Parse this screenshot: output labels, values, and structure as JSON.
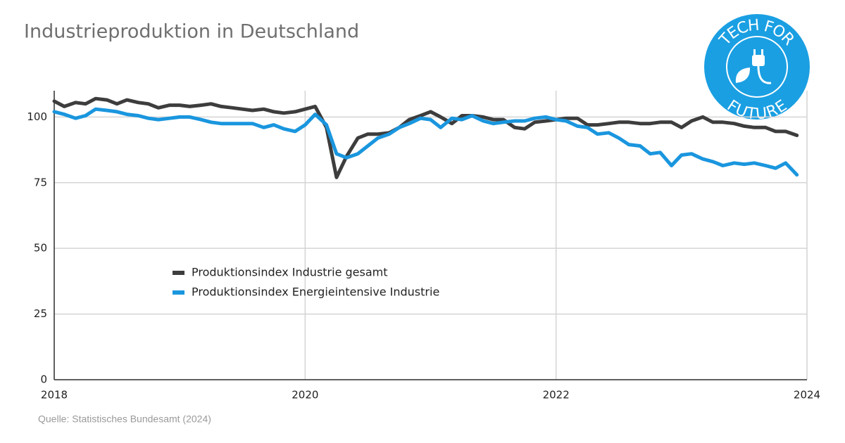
{
  "chart_data": {
    "type": "line",
    "title": "Industrieproduktion in Deutschland",
    "source": "Quelle: Statistisches Bundesamt (2024)",
    "logo": {
      "top": "TECH FOR",
      "bottom": "FUTURE"
    },
    "x": [
      2018,
      2018.08,
      2018.17,
      2018.25,
      2018.33,
      2018.42,
      2018.5,
      2018.58,
      2018.67,
      2018.75,
      2018.83,
      2018.92,
      2019,
      2019.08,
      2019.17,
      2019.25,
      2019.33,
      2019.42,
      2019.5,
      2019.58,
      2019.67,
      2019.75,
      2019.83,
      2019.92,
      2020,
      2020.08,
      2020.17,
      2020.25,
      2020.33,
      2020.42,
      2020.5,
      2020.58,
      2020.67,
      2020.75,
      2020.83,
      2020.92,
      2021,
      2021.08,
      2021.17,
      2021.25,
      2021.33,
      2021.42,
      2021.5,
      2021.58,
      2021.67,
      2021.75,
      2021.83,
      2021.92,
      2022,
      2022.08,
      2022.17,
      2022.25,
      2022.33,
      2022.42,
      2022.5,
      2022.58,
      2022.67,
      2022.75,
      2022.83,
      2022.92,
      2023,
      2023.08,
      2023.17,
      2023.25,
      2023.33,
      2023.42,
      2023.5,
      2023.58,
      2023.67,
      2023.75,
      2023.83,
      2023.92
    ],
    "series": [
      {
        "name": "Produktionsindex Industrie gesamt",
        "color": "#3d3d3d",
        "values": [
          106,
          104,
          105.5,
          105,
          107,
          106.5,
          105,
          106.5,
          105.5,
          105,
          103.5,
          104.5,
          104.5,
          104,
          104.5,
          105,
          104,
          103.5,
          103,
          102.5,
          103,
          102,
          101.5,
          102,
          103,
          104,
          96,
          77,
          85,
          92,
          93.5,
          93.5,
          94,
          96,
          99,
          100.5,
          102,
          100,
          97.5,
          100.5,
          100.5,
          100,
          99,
          99,
          96,
          95.5,
          98,
          98.5,
          99,
          99.5,
          99.5,
          97,
          97,
          97.5,
          98,
          98,
          97.5,
          97.5,
          98,
          98,
          96,
          98.5,
          100,
          98,
          98,
          97.5,
          96.5,
          96,
          96,
          94.5,
          94.5,
          93
        ]
      },
      {
        "name": "Produktionsindex Energieintensive Industrie",
        "color": "#1a96de",
        "values": [
          102,
          101,
          99.5,
          100.5,
          103,
          102.5,
          102,
          101,
          100.5,
          99.5,
          99,
          99.5,
          100,
          100,
          99,
          98,
          97.5,
          97.5,
          97.5,
          97.5,
          96,
          97,
          95.5,
          94.5,
          97,
          101,
          97,
          86,
          84.5,
          86,
          89,
          92,
          93.5,
          96,
          97.5,
          99.5,
          99,
          96,
          99.5,
          99,
          100.5,
          98.5,
          97.5,
          98,
          98.5,
          98.5,
          99.5,
          100,
          99,
          98.5,
          96.5,
          96,
          93.5,
          94,
          92,
          89.5,
          89,
          86,
          86.5,
          81.5,
          85.5,
          86,
          84,
          83,
          81.5,
          82.5,
          82,
          82.5,
          81.5,
          80.5,
          82.5,
          78
        ]
      }
    ],
    "xlim": [
      2018,
      2024
    ],
    "xticks": [
      2018,
      2020,
      2022,
      2024
    ],
    "ylim": [
      0,
      110
    ],
    "yticks": [
      0,
      25,
      50,
      75,
      100
    ],
    "grid": true
  }
}
